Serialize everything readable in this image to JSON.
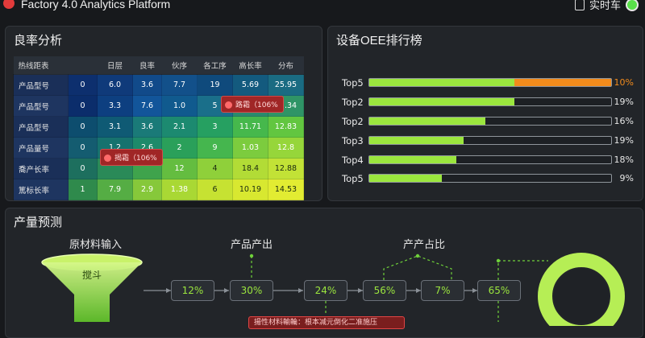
{
  "header": {
    "title": "Factory 4.0 Analytics Platform",
    "live_label": "实时车"
  },
  "yield_panel": {
    "title": "良率分析",
    "columns": [
      "热线距表",
      "",
      "日层",
      "良率",
      "伙序",
      "各工序",
      "高长率",
      "分布"
    ],
    "rows": [
      {
        "label": "产品型号",
        "cells": [
          "0",
          "6.0",
          "3.6",
          "7.7",
          "19",
          "5.69",
          "25.95"
        ]
      },
      {
        "label": "产品型号",
        "cells": [
          "0",
          "3.3",
          "7.6",
          "1.0",
          "5",
          "",
          "12.34"
        ]
      },
      {
        "label": "产品型号",
        "cells": [
          "0",
          "3.1",
          "3.6",
          "2.1",
          "3",
          "11.71",
          "12.83"
        ]
      },
      {
        "label": "产品量号",
        "cells": [
          "0",
          "1.2",
          "2.6",
          "2",
          "9",
          "1.03",
          "12.8"
        ]
      },
      {
        "label": "喬产长率",
        "cells": [
          "0",
          "",
          "",
          "12",
          "4",
          "18.4",
          "12.88"
        ]
      },
      {
        "label": "篤标长率",
        "cells": [
          "1",
          "7.9",
          "2.9",
          "1.38",
          "6",
          "10.19",
          "14.53"
        ]
      }
    ],
    "tooltips": [
      "路霜（106%",
      "揭霜（106%"
    ]
  },
  "oee_panel": {
    "title": "设备OEE排行榜",
    "items": [
      {
        "label": "Top5",
        "pct": "10%",
        "fill": 0.6,
        "extra": 0.4
      },
      {
        "label": "Top2",
        "pct": "19%",
        "fill": 0.6,
        "extra": 0
      },
      {
        "label": "Top2",
        "pct": "16%",
        "fill": 0.48,
        "extra": 0
      },
      {
        "label": "Top3",
        "pct": "19%",
        "fill": 0.39,
        "extra": 0
      },
      {
        "label": "Top4",
        "pct": "18%",
        "fill": 0.36,
        "extra": 0
      },
      {
        "label": "Top5",
        "pct": "9%",
        "fill": 0.3,
        "extra": 0
      }
    ]
  },
  "forecast_panel": {
    "title": "产量预测",
    "stage_labels": [
      "原材料输入",
      "产品产出",
      "产产占比"
    ],
    "funnel_label": "搅斗",
    "nodes": [
      "12%",
      "30%",
      "24%",
      "56%",
      "7%",
      "65%"
    ],
    "alert": "揚性材料輸輪：根本减元倒化二准施压"
  },
  "colors": {
    "accent_green": "#9be63e",
    "accent_orange": "#f28b1c",
    "alert_red": "#e04545"
  }
}
